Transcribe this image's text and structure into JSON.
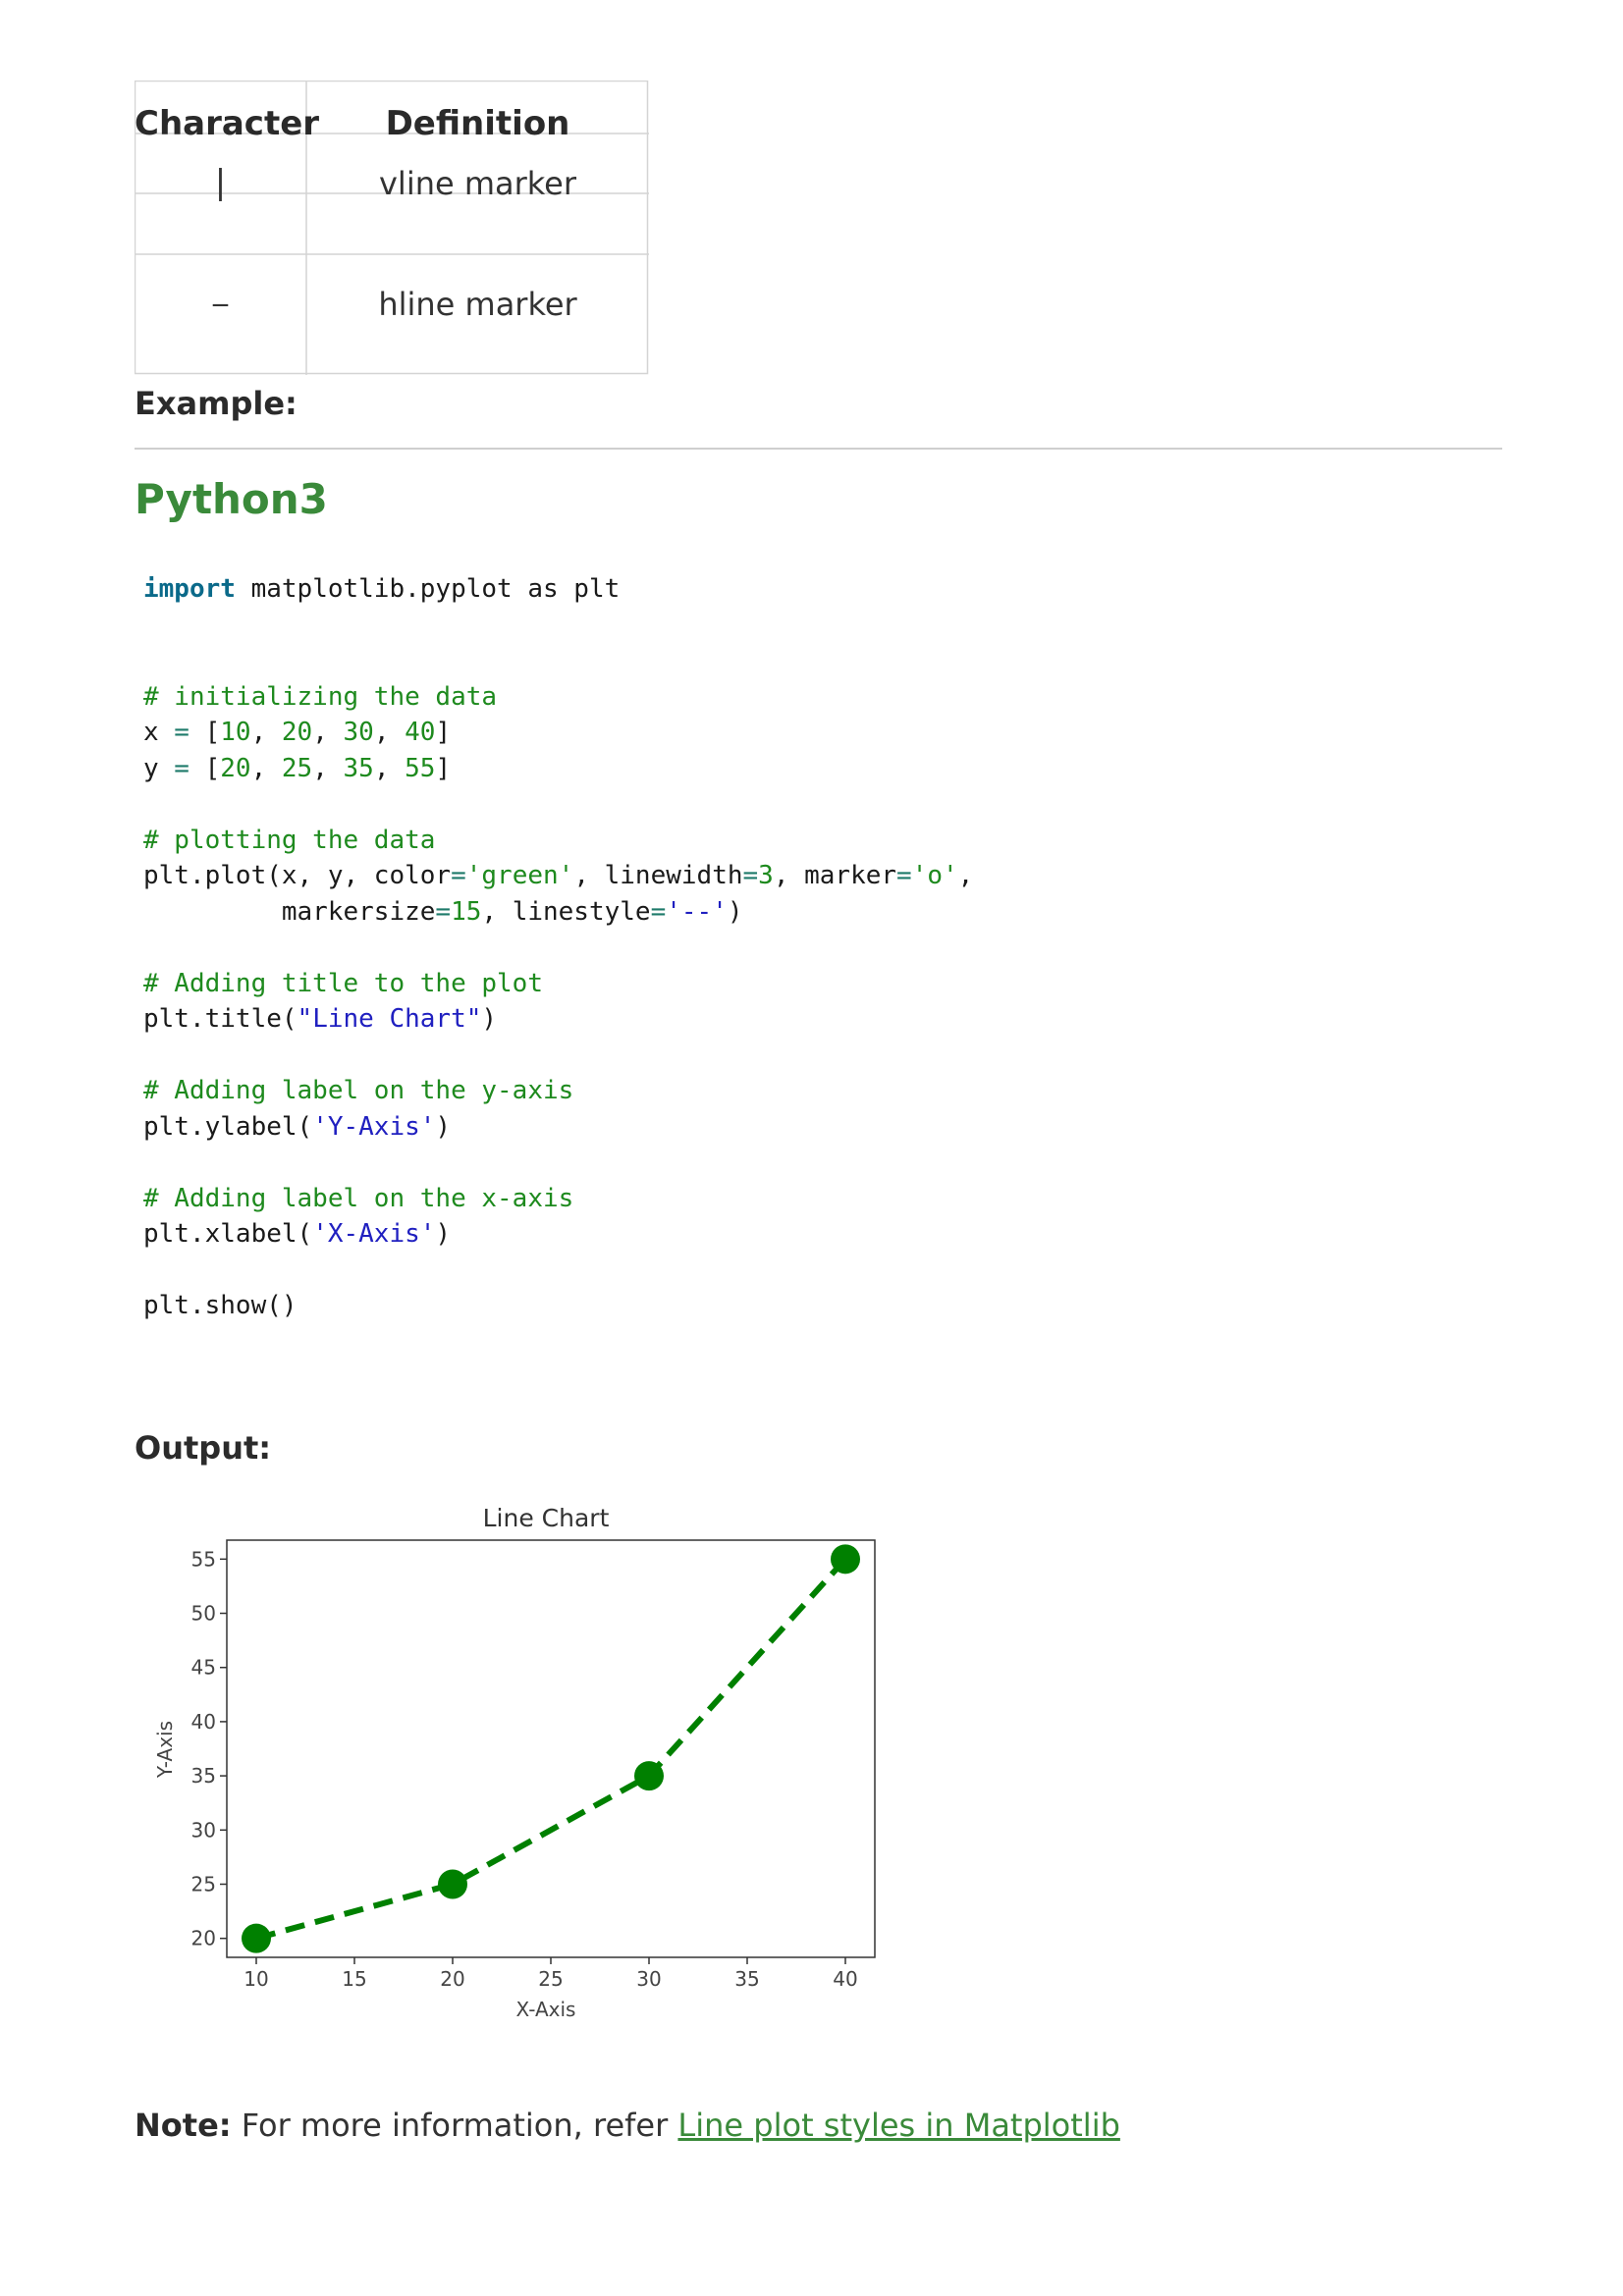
{
  "table": {
    "headers": [
      "Character",
      "Definition"
    ],
    "rows": [
      {
        "character": "|",
        "definition": "vline marker"
      },
      {
        "character": "_",
        "definition": "hline marker"
      }
    ]
  },
  "example_label": "Example:",
  "language": "Python3",
  "code": {
    "line1": {
      "kw": "import",
      "rest": " matplotlib.pyplot as plt"
    },
    "comment_init": "# initializing the data",
    "x_line": {
      "var": "x",
      "eq": " = ",
      "open": "[",
      "values": [
        "10",
        "20",
        "30",
        "40"
      ],
      "close": "]"
    },
    "y_line": {
      "var": "y",
      "eq": " = ",
      "open": "[",
      "values": [
        "20",
        "25",
        "35",
        "55"
      ],
      "close": "]"
    },
    "comment_plot": "# plotting the data",
    "plot_line1": {
      "a": "plt.plot(x, y, color",
      "eq1": "=",
      "s1": "'green'",
      "b": ", linewidth",
      "eq2": "=",
      "n1": "3",
      "c": ", marker",
      "eq3": "=",
      "s2": "'o'",
      "d": ","
    },
    "plot_line2": {
      "indent": "         markersize",
      "eq1": "=",
      "n1": "15",
      "b": ", linestyle",
      "eq2": "=",
      "s1": "'--'",
      "c": ")"
    },
    "comment_title": "# Adding title to the plot",
    "title_line": {
      "a": "plt.title(",
      "s": "\"Line Chart\"",
      "b": ")"
    },
    "comment_ylabel": "# Adding label on the y-axis",
    "ylabel_line": {
      "a": "plt.ylabel(",
      "s": "'Y-Axis'",
      "b": ")"
    },
    "comment_xlabel": "# Adding label on the x-axis",
    "xlabel_line": {
      "a": "plt.xlabel(",
      "s": "'X-Axis'",
      "b": ")"
    },
    "show_line": "plt.show()"
  },
  "output_label": "Output:",
  "chart_data": {
    "type": "line",
    "title": "Line Chart",
    "xlabel": "X-Axis",
    "ylabel": "Y-Axis",
    "x": [
      10,
      20,
      30,
      40
    ],
    "series": [
      {
        "values": [
          20,
          25,
          35,
          55
        ],
        "color": "#008000",
        "linestyle": "dashed",
        "marker": "circle"
      }
    ],
    "xticks": [
      10,
      15,
      20,
      25,
      30,
      35,
      40
    ],
    "yticks": [
      20,
      25,
      30,
      35,
      40,
      45,
      50,
      55
    ],
    "xlim": [
      8.5,
      41.5
    ],
    "ylim": [
      18.25,
      56.75
    ],
    "grid": false
  },
  "note": {
    "label": "Note:",
    "text": " For more information, refer ",
    "link": "Line plot styles in Matplotlib",
    "link_color": "#3a8a3a"
  }
}
